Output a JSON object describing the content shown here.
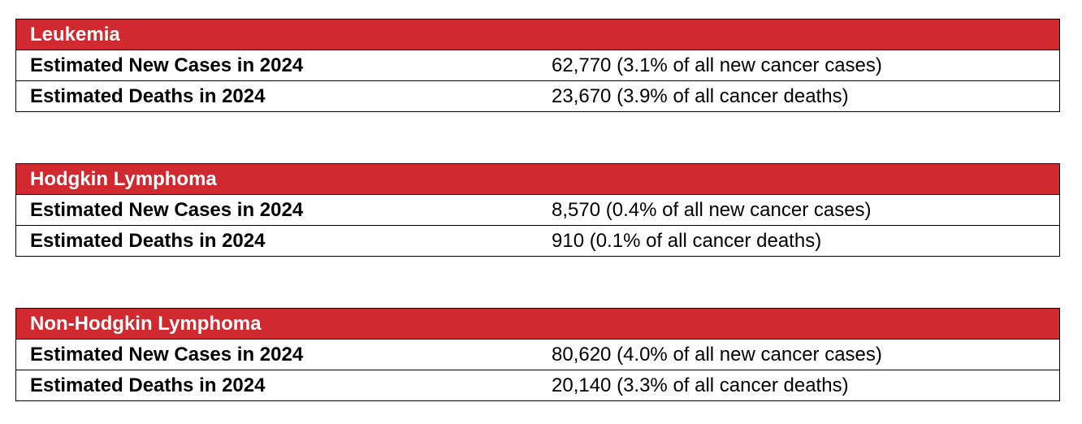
{
  "tables": [
    {
      "title": "Leukemia",
      "rows": [
        [
          "Estimated New Cases in 2024",
          "62,770 (3.1% of all new cancer cases)"
        ],
        [
          "Estimated Deaths in 2024",
          "23,670 (3.9% of all cancer deaths)"
        ]
      ]
    },
    {
      "title": "Hodgkin Lymphoma",
      "rows": [
        [
          "Estimated New Cases in 2024",
          "8,570 (0.4% of all new cancer cases)"
        ],
        [
          "Estimated Deaths in 2024",
          "910 (0.1% of all cancer deaths)"
        ]
      ]
    },
    {
      "title": "Non-Hodgkin Lymphoma",
      "rows": [
        [
          "Estimated New Cases in 2024",
          "80,620 (4.0% of all new cancer cases)"
        ],
        [
          "Estimated Deaths in 2024",
          "20,140 (3.3% of all cancer deaths)"
        ]
      ]
    }
  ]
}
